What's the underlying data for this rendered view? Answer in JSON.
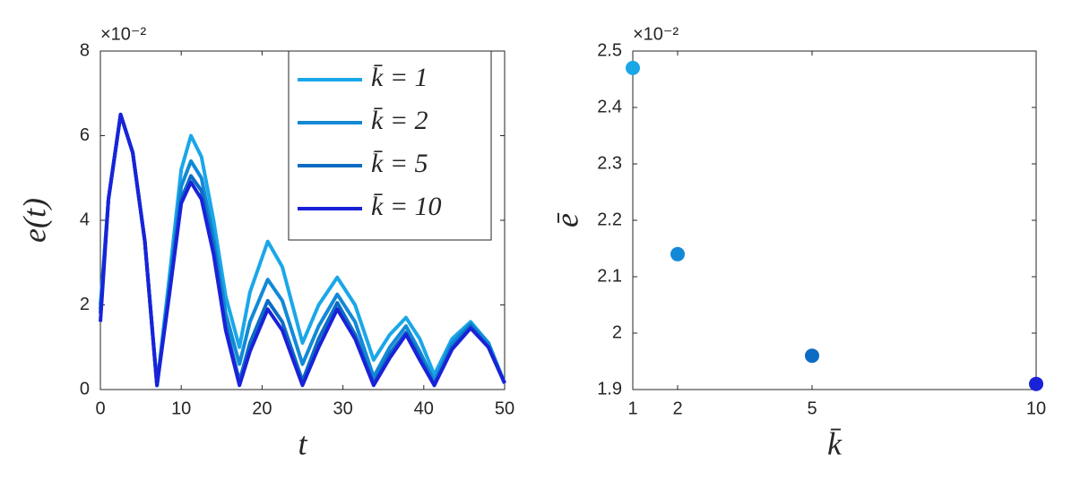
{
  "chart_data": [
    {
      "type": "line",
      "y_exponent_label": "×10⁻²",
      "xlabel": "t",
      "ylabel": "e(t)",
      "x": [
        0,
        1,
        2.5,
        4,
        5.5,
        7,
        8.5,
        10,
        11.2,
        12.5,
        14,
        15.5,
        17.2,
        18.5,
        20.7,
        22.5,
        25,
        27,
        29.3,
        31.5,
        33.8,
        35.8,
        37.8,
        39.5,
        41.3,
        43.5,
        45.8,
        48,
        50
      ],
      "series": [
        {
          "name": "k̄ = 1",
          "color": "#1aa7e8",
          "values": [
            2.0,
            4.5,
            6.5,
            5.6,
            3.5,
            0.1,
            2.6,
            5.2,
            6.0,
            5.5,
            4.0,
            2.2,
            1.0,
            2.3,
            3.5,
            2.9,
            1.1,
            2.0,
            2.65,
            2.0,
            0.7,
            1.3,
            1.7,
            1.2,
            0.35,
            1.2,
            1.6,
            1.1,
            0.15
          ]
        },
        {
          "name": "k̄ = 2",
          "color": "#1289d6",
          "values": [
            1.9,
            4.5,
            6.5,
            5.6,
            3.5,
            0.1,
            2.4,
            4.8,
            5.4,
            5.0,
            3.6,
            1.8,
            0.6,
            1.6,
            2.6,
            2.1,
            0.6,
            1.5,
            2.25,
            1.6,
            0.3,
            1.0,
            1.5,
            0.9,
            0.2,
            1.1,
            1.55,
            1.1,
            0.15
          ]
        },
        {
          "name": "k̄ = 5",
          "color": "#0c6cc4",
          "values": [
            1.8,
            4.5,
            6.5,
            5.6,
            3.5,
            0.1,
            2.3,
            4.5,
            5.05,
            4.7,
            3.4,
            1.5,
            0.2,
            1.1,
            2.1,
            1.6,
            0.2,
            1.2,
            2.05,
            1.3,
            0.15,
            0.85,
            1.35,
            0.8,
            0.1,
            1.0,
            1.5,
            1.0,
            0.15
          ]
        },
        {
          "name": "k̄ = 10",
          "color": "#1a22d8",
          "values": [
            1.6,
            4.5,
            6.5,
            5.6,
            3.5,
            0.1,
            2.2,
            4.4,
            4.9,
            4.5,
            3.2,
            1.4,
            0.1,
            0.9,
            1.9,
            1.4,
            0.1,
            1.0,
            1.9,
            1.2,
            0.1,
            0.75,
            1.3,
            0.7,
            0.1,
            0.95,
            1.45,
            1.0,
            0.15
          ]
        }
      ],
      "xlim": [
        0,
        50
      ],
      "xticks": [
        0,
        10,
        20,
        30,
        40,
        50
      ],
      "ylim": [
        0,
        8
      ],
      "yticks": [
        0,
        2,
        4,
        6,
        8
      ],
      "legend": "upper right"
    },
    {
      "type": "scatter",
      "y_exponent_label": "×10⁻²",
      "xlabel": "k̄",
      "ylabel": "ē",
      "x": [
        1,
        2,
        5,
        10
      ],
      "values": [
        2.47,
        2.14,
        1.96,
        1.91
      ],
      "colors": [
        "#1aa7e8",
        "#1289d6",
        "#0c6cc4",
        "#1a22d8"
      ],
      "xlim": [
        1,
        10
      ],
      "xticks": [
        1,
        2,
        5,
        10
      ],
      "ylim": [
        1.9,
        2.5
      ],
      "yticks": [
        1.9,
        2,
        2.1,
        2.2,
        2.3,
        2.4,
        2.5
      ]
    }
  ]
}
